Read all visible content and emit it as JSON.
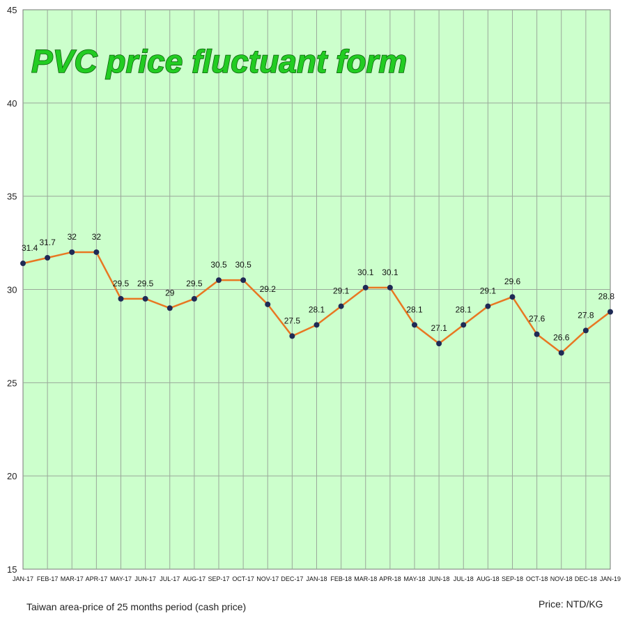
{
  "chart_data": {
    "type": "line",
    "title": "PVC price fluctuant form",
    "footnote": "Taiwan area-price of 25 months period (cash price)",
    "unit_label": "Price: NTD/KG",
    "categories": [
      "JAN-17",
      "FEB-17",
      "MAR-17",
      "APR-17",
      "MAY-17",
      "JUN-17",
      "JUL-17",
      "AUG-17",
      "SEP-17",
      "OCT-17",
      "NOV-17",
      "DEC-17",
      "JAN-18",
      "FEB-18",
      "MAR-18",
      "APR-18",
      "MAY-18",
      "JUN-18",
      "JUL-18",
      "AUG-18",
      "SEP-18",
      "OCT-18",
      "NOV-18",
      "DEC-18",
      "JAN-19"
    ],
    "values": [
      31.4,
      31.7,
      32,
      32,
      29.5,
      29.5,
      29,
      29.5,
      30.5,
      30.5,
      29.2,
      27.5,
      28.1,
      29.1,
      30.1,
      30.1,
      28.1,
      27.1,
      28.1,
      29.1,
      29.6,
      27.6,
      26.6,
      27.8,
      28.8
    ],
    "value_labels": [
      "31.4",
      "31.7",
      "32",
      "32",
      "29.5",
      "29.5",
      "29",
      "29.5",
      "30.5",
      "30.5",
      "29.2",
      "27.5",
      "28.1",
      "29.1",
      "30.1",
      "30.1",
      "28.1",
      "27.1",
      "28.1",
      "29.1",
      "29.6",
      "27.6",
      "26.6",
      "27.8",
      "28.8"
    ],
    "ylim": [
      15,
      45
    ],
    "yticks": [
      "15",
      "20",
      "25",
      "30",
      "35",
      "40",
      "45"
    ],
    "grid": true,
    "colors": {
      "plot_bg": "#ccffcc",
      "line": "#e87722",
      "marker": "#1f2a55",
      "grid": "#9aa89a"
    }
  }
}
